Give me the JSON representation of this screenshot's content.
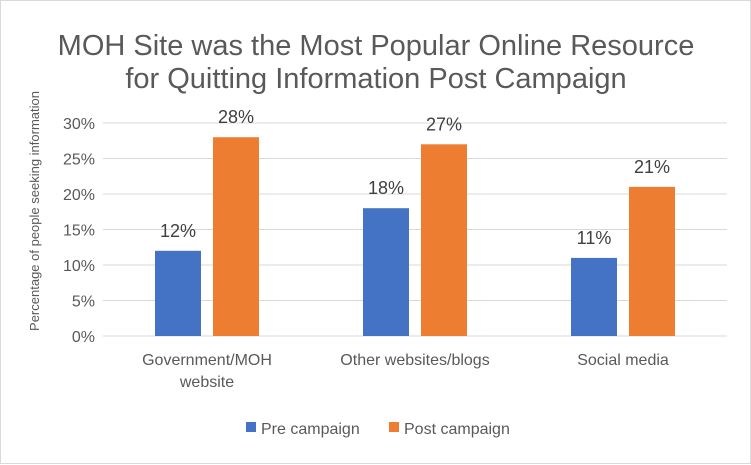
{
  "chart_data": {
    "type": "bar",
    "title_lines": [
      "MOH Site was the Most Popular Online Resource",
      "for Quitting Information Post Campaign"
    ],
    "xlabel": "",
    "ylabel": "Percentage of people seeking information",
    "ylim": [
      0,
      30
    ],
    "y_ticks": [
      0,
      5,
      10,
      15,
      20,
      25,
      30
    ],
    "y_tick_format": "percent",
    "categories": [
      [
        "Government/MOH",
        "website"
      ],
      [
        "Other websites/blogs"
      ],
      [
        "Social media"
      ]
    ],
    "series": [
      {
        "name": "Pre campaign",
        "color": "#4472C4",
        "values": [
          12,
          18,
          11
        ]
      },
      {
        "name": "Post campaign",
        "color": "#ED7D31",
        "values": [
          28,
          27,
          21
        ]
      }
    ],
    "grid": true,
    "legend_position": "bottom"
  }
}
